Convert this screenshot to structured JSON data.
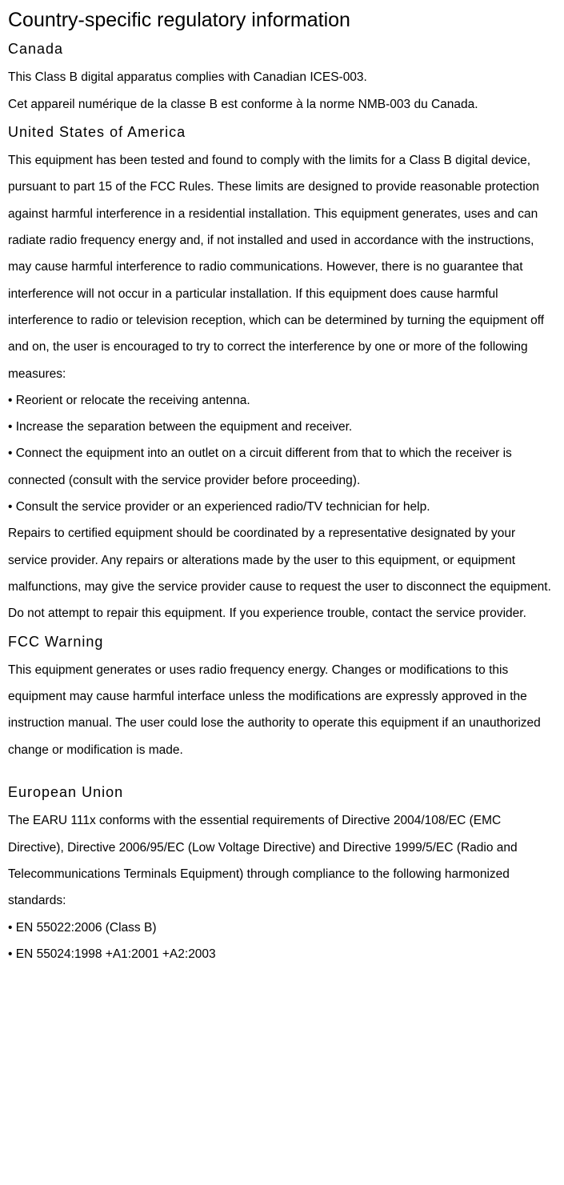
{
  "title": "Country-specific regulatory information",
  "sections": {
    "canada": {
      "heading": "Canada",
      "paragraphs": [
        "This Class B digital apparatus complies with Canadian ICES-003.",
        "Cet appareil numérique de la classe B est conforme à la norme NMB-003 du Canada."
      ]
    },
    "usa": {
      "heading": "United States of America",
      "intro": "This equipment has been tested and found to comply with the limits for a Class B digital device, pursuant to part 15 of the FCC Rules. These limits are designed to provide reasonable protection against harmful interference in a residential installation. This equipment generates, uses and can radiate radio frequency energy and, if not installed and used in accordance with the instructions, may cause harmful interference to radio communications. However, there is no guarantee that interference will not occur in a particular installation. If this equipment does cause harmful interference to radio or television reception, which can be determined by turning the equipment off and on, the user is encouraged to try to correct the interference by one or more of the following measures:",
      "bullets": [
        "• Reorient or relocate the receiving antenna.",
        "• Increase the separation between the equipment and receiver.",
        "• Connect the equipment into an outlet on a circuit different from that to which the receiver is connected (consult with the service provider before proceeding).",
        "• Consult the service provider or an experienced radio/TV technician for help."
      ],
      "footer": [
        "Repairs to certified equipment should be coordinated by a representative designated by your service provider. Any repairs or alterations made by the user to this equipment, or equipment malfunctions, may give the service provider cause to request the user to disconnect the equipment.",
        "Do not attempt to repair this equipment. If you experience trouble, contact the service provider."
      ]
    },
    "fcc": {
      "heading": "FCC Warning",
      "text": "This equipment generates or uses radio frequency energy. Changes or modifications to this equipment may cause harmful interface unless the modifications are expressly approved in the instruction manual. The user could lose the authority to operate this equipment if an unauthorized change or modification is made."
    },
    "eu": {
      "heading": "European Union",
      "intro": "The EARU 111x conforms with the essential requirements of Directive 2004/108/EC (EMC Directive), Directive 2006/95/EC (Low Voltage Directive) and Directive 1999/5/EC (Radio and Telecommunications Terminals Equipment) through compliance to the following harmonized standards:",
      "bullets": [
        "• EN 55022:2006 (Class B)",
        "• EN 55024:1998 +A1:2001 +A2:2003"
      ]
    }
  }
}
